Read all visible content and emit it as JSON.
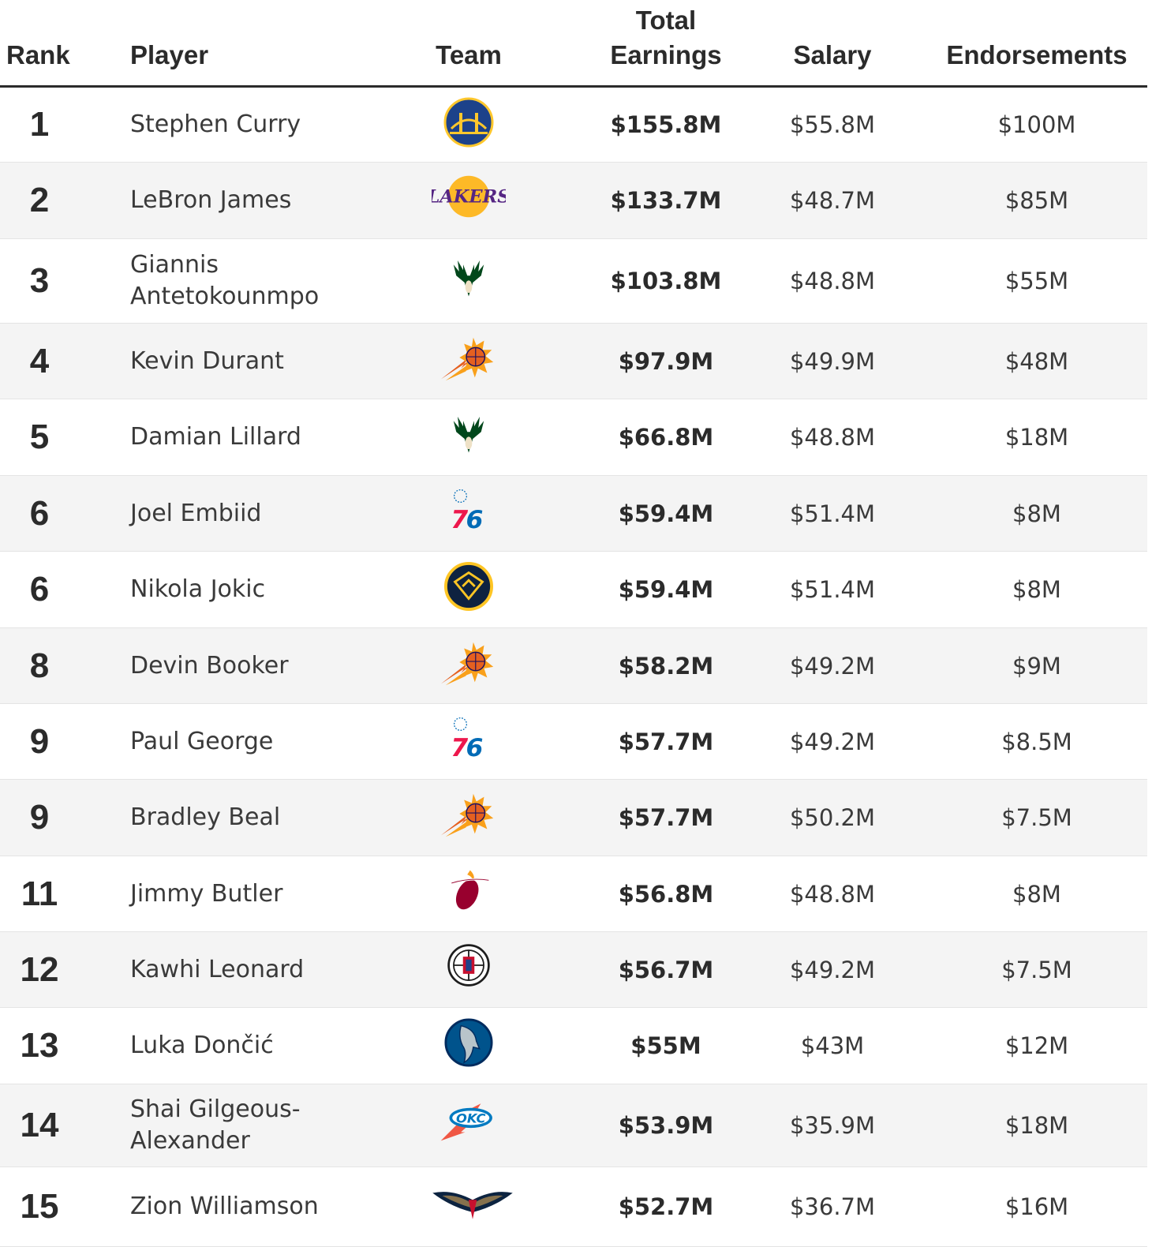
{
  "headers": {
    "rank": "Rank",
    "player": "Player",
    "team": "Team",
    "total_line1": "Total",
    "total_line2": "Earnings",
    "salary": "Salary",
    "endorsements": "Endorsements"
  },
  "rows": [
    {
      "rank": "1",
      "player": "Stephen Curry",
      "team_logo": "warriors-logo",
      "total": "$155.8M",
      "salary": "$55.8M",
      "endorsements": "$100M"
    },
    {
      "rank": "2",
      "player": "LeBron James",
      "team_logo": "lakers-logo",
      "total": "$133.7M",
      "salary": "$48.7M",
      "endorsements": "$85M"
    },
    {
      "rank": "3",
      "player": "Giannis Antetokounmpo",
      "team_logo": "bucks-logo",
      "total": "$103.8M",
      "salary": "$48.8M",
      "endorsements": "$55M"
    },
    {
      "rank": "4",
      "player": "Kevin Durant",
      "team_logo": "suns-logo",
      "total": "$97.9M",
      "salary": "$49.9M",
      "endorsements": "$48M"
    },
    {
      "rank": "5",
      "player": "Damian Lillard",
      "team_logo": "bucks-logo",
      "total": "$66.8M",
      "salary": "$48.8M",
      "endorsements": "$18M"
    },
    {
      "rank": "6",
      "player": "Joel Embiid",
      "team_logo": "76ers-logo",
      "total": "$59.4M",
      "salary": "$51.4M",
      "endorsements": "$8M"
    },
    {
      "rank": "6",
      "player": "Nikola Jokic",
      "team_logo": "nuggets-logo",
      "total": "$59.4M",
      "salary": "$51.4M",
      "endorsements": "$8M"
    },
    {
      "rank": "8",
      "player": "Devin Booker",
      "team_logo": "suns-logo",
      "total": "$58.2M",
      "salary": "$49.2M",
      "endorsements": "$9M"
    },
    {
      "rank": "9",
      "player": "Paul George",
      "team_logo": "76ers-logo",
      "total": "$57.7M",
      "salary": "$49.2M",
      "endorsements": "$8.5M"
    },
    {
      "rank": "9",
      "player": "Bradley Beal",
      "team_logo": "suns-logo",
      "total": "$57.7M",
      "salary": "$50.2M",
      "endorsements": "$7.5M"
    },
    {
      "rank": "11",
      "player": "Jimmy Butler",
      "team_logo": "heat-logo",
      "total": "$56.8M",
      "salary": "$48.8M",
      "endorsements": "$8M"
    },
    {
      "rank": "12",
      "player": "Kawhi Leonard",
      "team_logo": "clippers-logo",
      "total": "$56.7M",
      "salary": "$49.2M",
      "endorsements": "$7.5M"
    },
    {
      "rank": "13",
      "player": "Luka Dončić",
      "team_logo": "mavericks-logo",
      "total": "$55M",
      "salary": "$43M",
      "endorsements": "$12M"
    },
    {
      "rank": "14",
      "player": "Shai Gilgeous-Alexander",
      "team_logo": "thunder-logo",
      "total": "$53.9M",
      "salary": "$35.9M",
      "endorsements": "$18M"
    },
    {
      "rank": "15",
      "player": "Zion Williamson",
      "team_logo": "pelicans-logo",
      "total": "$52.7M",
      "salary": "$36.7M",
      "endorsements": "$16M"
    }
  ]
}
